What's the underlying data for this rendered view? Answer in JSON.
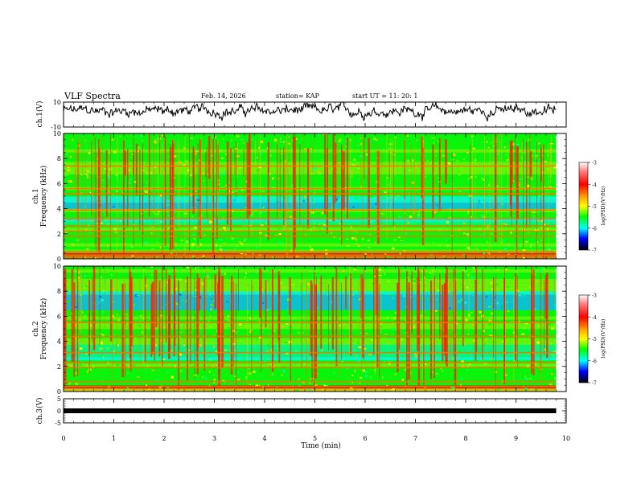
{
  "header": {
    "title": "VLF Spectra",
    "date": "Feb. 14, 2026",
    "station": "station= KAP",
    "start_ut": "start UT =  11: 20: 1"
  },
  "chart_data": [
    {
      "type": "line",
      "panel": "ch1-waveform",
      "ylabel": "ch.1(V)",
      "ylim": [
        -10,
        10
      ],
      "yticks": [
        "10",
        "-10"
      ],
      "xlim": [
        0,
        10
      ],
      "x_extent_min": 9.8,
      "mean_value": 3,
      "amplitude": 5,
      "description_color": "#000000"
    },
    {
      "type": "heatmap",
      "panel": "ch1-spectrogram",
      "ylabel": [
        "ch.1",
        "Frequency (kHz)"
      ],
      "ylim": [
        0,
        10
      ],
      "yticks": [
        "0",
        "2",
        "4",
        "6",
        "8",
        "10"
      ],
      "xlim": [
        0,
        10
      ],
      "x_extent_min": 9.8,
      "colorbar": {
        "label": "log(PSD)(V²/Hz)",
        "range": [
          -7,
          -3
        ],
        "ticks": [
          "-3",
          "-4",
          "-5",
          "-6",
          "-7"
        ]
      }
    },
    {
      "type": "heatmap",
      "panel": "ch2-spectrogram",
      "ylabel": [
        "ch.2",
        "Frequency (kHz)"
      ],
      "ylim": [
        0,
        10
      ],
      "yticks": [
        "0",
        "2",
        "4",
        "6",
        "8",
        "10"
      ],
      "xlim": [
        0,
        10
      ],
      "x_extent_min": 9.8,
      "colorbar": {
        "label": "log(PSD)(V²/Hz)",
        "range": [
          -7,
          -3
        ],
        "ticks": [
          "-3",
          "-4",
          "-5",
          "-6",
          "-7"
        ]
      }
    },
    {
      "type": "line",
      "panel": "ch3-waveform",
      "ylabel": "ch.3(V)",
      "ylim": [
        -5,
        5
      ],
      "yticks": [
        "5",
        "0",
        "-5"
      ],
      "xlim": [
        0,
        10
      ],
      "x_extent_min": 9.8,
      "constant_value": 0,
      "xlabel": "Time (min)",
      "xticks": [
        "0",
        "1",
        "2",
        "3",
        "4",
        "5",
        "6",
        "7",
        "8",
        "9",
        "10"
      ]
    }
  ]
}
